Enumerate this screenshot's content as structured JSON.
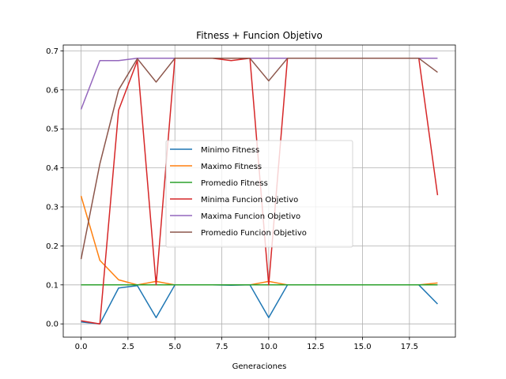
{
  "chart_data": {
    "type": "line",
    "title": "Fitness + Funcion Objetivo",
    "xlabel": "Generaciones",
    "ylabel": "",
    "xlim": [
      -0.95,
      19.95
    ],
    "ylim": [
      -0.034,
      0.715
    ],
    "xticks": [
      "0.0",
      "2.5",
      "5.0",
      "7.5",
      "10.0",
      "12.5",
      "15.0",
      "17.5"
    ],
    "yticks": [
      "0.0",
      "0.1",
      "0.2",
      "0.3",
      "0.4",
      "0.5",
      "0.6",
      "0.7"
    ],
    "grid": true,
    "legend_position": "center",
    "x": [
      0,
      1,
      2,
      3,
      4,
      5,
      6,
      7,
      8,
      9,
      10,
      11,
      12,
      13,
      14,
      15,
      16,
      17,
      18,
      19
    ],
    "series": [
      {
        "name": "Minimo Fitness",
        "color": "#1f77b4",
        "values": [
          0.005,
          0.0,
          0.092,
          0.098,
          0.016,
          0.1,
          0.1,
          0.1,
          0.099,
          0.1,
          0.016,
          0.1,
          0.1,
          0.1,
          0.1,
          0.1,
          0.1,
          0.1,
          0.1,
          0.051
        ]
      },
      {
        "name": "Maximo Fitness",
        "color": "#ff7f0e",
        "values": [
          0.328,
          0.163,
          0.113,
          0.1,
          0.109,
          0.1,
          0.1,
          0.1,
          0.1,
          0.1,
          0.109,
          0.1,
          0.1,
          0.1,
          0.1,
          0.1,
          0.1,
          0.1,
          0.1,
          0.105
        ]
      },
      {
        "name": "Promedio Fitness",
        "color": "#2ca02c",
        "values": [
          0.1,
          0.1,
          0.1,
          0.1,
          0.1,
          0.1,
          0.1,
          0.1,
          0.1,
          0.1,
          0.1,
          0.1,
          0.1,
          0.1,
          0.1,
          0.1,
          0.1,
          0.1,
          0.1,
          0.1
        ]
      },
      {
        "name": "Minima Funcion Objetivo",
        "color": "#d62728",
        "values": [
          0.008,
          0.0,
          0.548,
          0.675,
          0.1,
          0.681,
          0.681,
          0.681,
          0.675,
          0.681,
          0.1,
          0.681,
          0.681,
          0.681,
          0.681,
          0.681,
          0.681,
          0.681,
          0.681,
          0.33
        ]
      },
      {
        "name": "Maxima Funcion Objetivo",
        "color": "#9467bd",
        "values": [
          0.55,
          0.675,
          0.675,
          0.681,
          0.681,
          0.681,
          0.681,
          0.681,
          0.681,
          0.681,
          0.681,
          0.681,
          0.681,
          0.681,
          0.681,
          0.681,
          0.681,
          0.681,
          0.681,
          0.681
        ]
      },
      {
        "name": "Promedio Funcion Objetivo",
        "color": "#8c564b",
        "values": [
          0.166,
          0.41,
          0.6,
          0.68,
          0.62,
          0.681,
          0.681,
          0.681,
          0.681,
          0.681,
          0.623,
          0.681,
          0.681,
          0.681,
          0.681,
          0.681,
          0.681,
          0.681,
          0.681,
          0.645
        ]
      }
    ]
  }
}
